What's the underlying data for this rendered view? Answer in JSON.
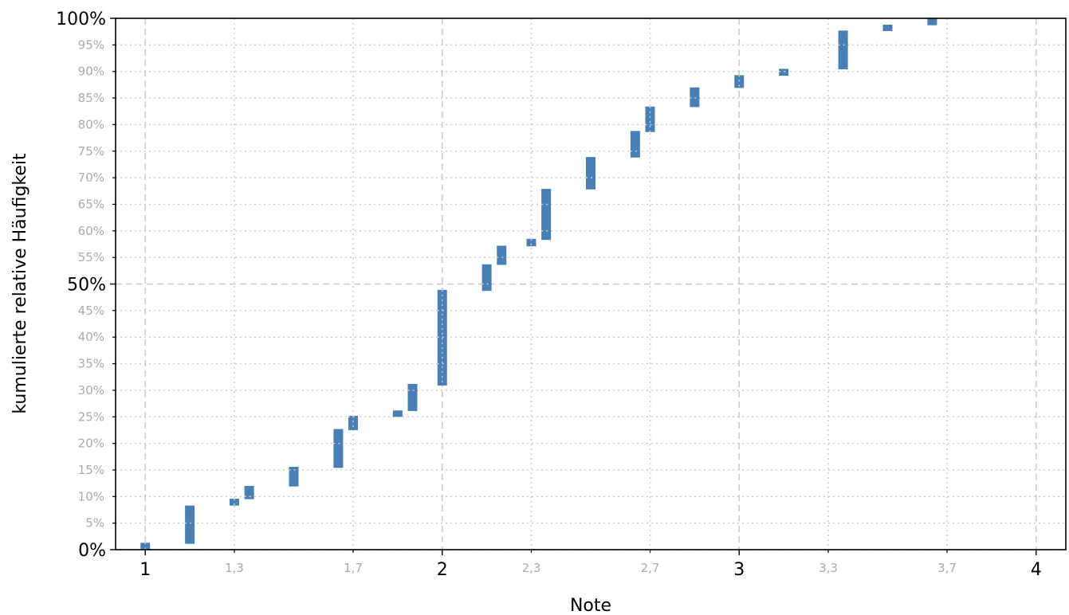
{
  "chart_data": {
    "type": "bar",
    "subtype": "floating-range",
    "title": "",
    "xlabel": "Note",
    "ylabel": "kumulierte relative Häufigkeit",
    "xlim": [
      0.9,
      4.1
    ],
    "ylim": [
      0,
      100
    ],
    "x_major_ticks": [
      {
        "value": 1,
        "label": "1"
      },
      {
        "value": 2,
        "label": "2"
      },
      {
        "value": 3,
        "label": "3"
      },
      {
        "value": 4,
        "label": "4"
      }
    ],
    "x_minor_ticks": [
      {
        "value": 1.3,
        "label": "1,3"
      },
      {
        "value": 1.7,
        "label": "1,7"
      },
      {
        "value": 2.3,
        "label": "2,3"
      },
      {
        "value": 2.7,
        "label": "2,7"
      },
      {
        "value": 3.3,
        "label": "3,3"
      },
      {
        "value": 3.7,
        "label": "3,7"
      }
    ],
    "y_major_ticks": [
      {
        "value": 0,
        "label": "0%"
      },
      {
        "value": 50,
        "label": "50%"
      },
      {
        "value": 100,
        "label": "100%"
      }
    ],
    "y_minor_ticks": [
      {
        "value": 5,
        "label": "5%"
      },
      {
        "value": 10,
        "label": "10%"
      },
      {
        "value": 15,
        "label": "15%"
      },
      {
        "value": 20,
        "label": "20%"
      },
      {
        "value": 25,
        "label": "25%"
      },
      {
        "value": 30,
        "label": "30%"
      },
      {
        "value": 35,
        "label": "35%"
      },
      {
        "value": 40,
        "label": "40%"
      },
      {
        "value": 45,
        "label": "45%"
      },
      {
        "value": 55,
        "label": "55%"
      },
      {
        "value": 60,
        "label": "60%"
      },
      {
        "value": 65,
        "label": "65%"
      },
      {
        "value": 70,
        "label": "70%"
      },
      {
        "value": 75,
        "label": "75%"
      },
      {
        "value": 80,
        "label": "80%"
      },
      {
        "value": 85,
        "label": "85%"
      },
      {
        "value": 90,
        "label": "90%"
      },
      {
        "value": 95,
        "label": "95%"
      }
    ],
    "bars": [
      {
        "x": 1.0,
        "y0": 0.0,
        "y1": 1.3
      },
      {
        "x": 1.15,
        "y0": 1.1,
        "y1": 8.3
      },
      {
        "x": 1.3,
        "y0": 8.3,
        "y1": 9.6
      },
      {
        "x": 1.35,
        "y0": 9.5,
        "y1": 12.0
      },
      {
        "x": 1.5,
        "y0": 11.9,
        "y1": 15.6
      },
      {
        "x": 1.65,
        "y0": 15.4,
        "y1": 22.7
      },
      {
        "x": 1.7,
        "y0": 22.5,
        "y1": 25.2
      },
      {
        "x": 1.85,
        "y0": 25.0,
        "y1": 26.2
      },
      {
        "x": 1.9,
        "y0": 26.1,
        "y1": 31.2
      },
      {
        "x": 2.0,
        "y0": 30.9,
        "y1": 48.9
      },
      {
        "x": 2.15,
        "y0": 48.7,
        "y1": 53.7
      },
      {
        "x": 2.2,
        "y0": 53.6,
        "y1": 57.2
      },
      {
        "x": 2.3,
        "y0": 57.1,
        "y1": 58.5
      },
      {
        "x": 2.35,
        "y0": 58.3,
        "y1": 67.9
      },
      {
        "x": 2.5,
        "y0": 67.8,
        "y1": 73.9
      },
      {
        "x": 2.65,
        "y0": 73.8,
        "y1": 78.8
      },
      {
        "x": 2.7,
        "y0": 78.6,
        "y1": 83.4
      },
      {
        "x": 2.85,
        "y0": 83.3,
        "y1": 87.0
      },
      {
        "x": 3.0,
        "y0": 86.9,
        "y1": 89.3
      },
      {
        "x": 3.15,
        "y0": 89.2,
        "y1": 90.5
      },
      {
        "x": 3.35,
        "y0": 90.4,
        "y1": 97.7
      },
      {
        "x": 3.5,
        "y0": 97.6,
        "y1": 98.8
      },
      {
        "x": 3.65,
        "y0": 98.7,
        "y1": 100.0
      }
    ],
    "bar_color": "#4a7fb5",
    "gridline_color": "#cccccc",
    "minor_label_color": "#aaaaaa",
    "grid": true,
    "legend": "none"
  }
}
